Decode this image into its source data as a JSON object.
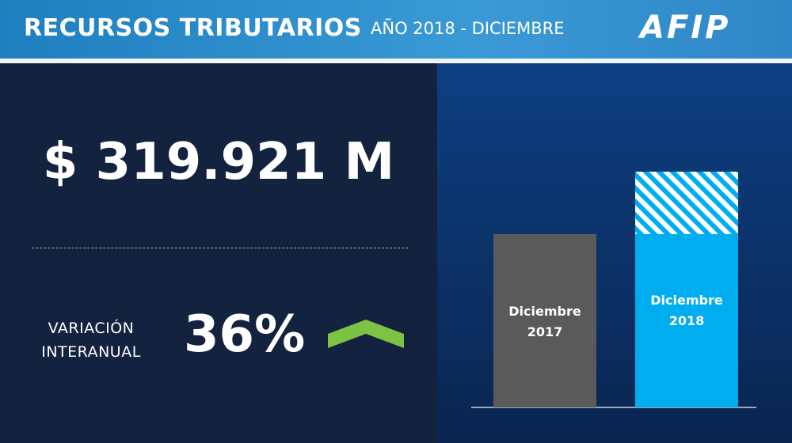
{
  "header": {
    "title": "RECURSOS TRIBUTARIOS",
    "subtitle": "AÑO 2018 - DICIEMBRE",
    "logo": "AFIP"
  },
  "amount": "$ 319.921 M",
  "variation": {
    "label": "VARIACIÓN INTERANUAL",
    "value": "36%"
  },
  "chart_data": {
    "type": "bar",
    "categories": [
      "Diciembre 2017",
      "Diciembre 2018"
    ],
    "series": [
      {
        "colors": [
          "#5a5a5a",
          "#00aeef"
        ],
        "values": [
          235236,
          235236
        ]
      },
      {
        "pattern": "hatch",
        "color": "#00aeef",
        "values": [
          0,
          84685
        ]
      }
    ],
    "ylim": [
      0,
      350000
    ]
  }
}
